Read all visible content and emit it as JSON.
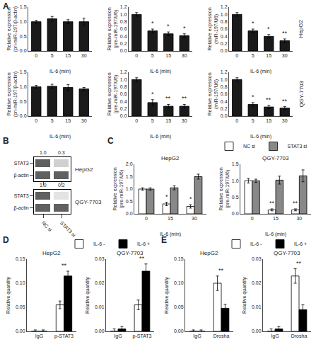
{
  "chart_data": [
    {
      "type": "bar",
      "annotations": [
        "A"
      ],
      "categories": [
        "0",
        "5",
        "15",
        "30"
      ],
      "xlabel": "IL-6 (min)",
      "ylabel": "Relative expression\n(pri-miR-197/β-actin)",
      "values": [
        1.0,
        1.1,
        1.0,
        1.0
      ],
      "errors": [
        0.05,
        0.08,
        0.07,
        0.12
      ],
      "color": "#1a1a1a",
      "ylim": [
        0,
        1.5
      ],
      "yticks": [
        {
          "value": 0.0,
          "label": "0.0"
        },
        {
          "value": 0.5,
          "label": "0.5"
        },
        {
          "value": 1.0,
          "label": "1.0"
        },
        {
          "value": 1.5,
          "label": "1.5"
        }
      ],
      "grid": false
    },
    {
      "type": "bar",
      "annotations": [
        {
          "text": "*",
          "x": "5"
        },
        {
          "text": "*",
          "x": "15"
        },
        {
          "text": "*",
          "x": "30"
        }
      ],
      "categories": [
        "0",
        "5",
        "15",
        "30"
      ],
      "xlabel": "IL-6 (min)",
      "ylabel": "Relative expression\n(pre-miR-197/U6)",
      "values": [
        1.0,
        0.55,
        0.47,
        0.42
      ],
      "errors": [
        0.05,
        0.05,
        0.05,
        0.05
      ],
      "color": "#1a1a1a",
      "ylim": [
        0,
        1.2
      ],
      "yticks": [
        {
          "value": 0.0,
          "label": "0.0"
        },
        {
          "value": 0.2,
          "label": "0.2"
        },
        {
          "value": 0.4,
          "label": "0.4"
        },
        {
          "value": 0.6,
          "label": "0.6"
        },
        {
          "value": 0.8,
          "label": "0.8"
        },
        {
          "value": 1.0,
          "label": "1.0"
        },
        {
          "value": 1.2,
          "label": "1.2"
        }
      ],
      "grid": false
    },
    {
      "type": "bar",
      "annotations": [
        "HepG2",
        {
          "text": "*",
          "x": "5"
        },
        {
          "text": "*",
          "x": "15"
        },
        {
          "text": "**",
          "x": "30"
        }
      ],
      "categories": [
        "0",
        "5",
        "15",
        "30"
      ],
      "xlabel": "IL-6 (min)",
      "ylabel": "Relative expression\n(miR-197/U6)",
      "values": [
        1.0,
        0.55,
        0.4,
        0.28
      ],
      "errors": [
        0.05,
        0.05,
        0.05,
        0.05
      ],
      "color": "#1a1a1a",
      "ylim": [
        0,
        1.2
      ],
      "yticks": [
        {
          "value": 0.0,
          "label": "0.0"
        },
        {
          "value": 0.2,
          "label": "0.2"
        },
        {
          "value": 0.4,
          "label": "0.4"
        },
        {
          "value": 0.6,
          "label": "0.6"
        },
        {
          "value": 0.8,
          "label": "0.8"
        },
        {
          "value": 1.0,
          "label": "1.0"
        },
        {
          "value": 1.2,
          "label": "1.2"
        }
      ],
      "grid": false
    },
    {
      "type": "bar",
      "categories": [
        "0",
        "5",
        "15",
        "30"
      ],
      "xlabel": "IL-6 (min)",
      "ylabel": "Relative expression\n(pri-miR-197/β-actin)",
      "values": [
        1.0,
        1.02,
        0.98,
        0.93
      ],
      "errors": [
        0.05,
        0.07,
        0.1,
        0.05
      ],
      "color": "#1a1a1a",
      "ylim": [
        0,
        1.5
      ],
      "yticks": [
        {
          "value": 0.0,
          "label": "0.0"
        },
        {
          "value": 0.5,
          "label": "0.5"
        },
        {
          "value": 1.0,
          "label": "1.0"
        },
        {
          "value": 1.5,
          "label": "1.5"
        }
      ],
      "grid": false
    },
    {
      "type": "bar",
      "annotations": [
        {
          "text": "*",
          "x": "5"
        },
        {
          "text": "**",
          "x": "15"
        },
        {
          "text": "**",
          "x": "30"
        }
      ],
      "categories": [
        "0",
        "5",
        "15",
        "30"
      ],
      "xlabel": "IL-6 (min)",
      "ylabel": "Relative expression\n(pre-miR-197/U6)",
      "values": [
        1.0,
        0.37,
        0.27,
        0.27
      ],
      "errors": [
        0.05,
        0.08,
        0.05,
        0.05
      ],
      "color": "#1a1a1a",
      "ylim": [
        0,
        1.2
      ],
      "yticks": [
        {
          "value": 0.0,
          "label": "0.0"
        },
        {
          "value": 0.2,
          "label": "0.2"
        },
        {
          "value": 0.4,
          "label": "0.4"
        },
        {
          "value": 0.6,
          "label": "0.6"
        },
        {
          "value": 0.8,
          "label": "0.8"
        },
        {
          "value": 1.0,
          "label": "1.0"
        },
        {
          "value": 1.2,
          "label": "1.2"
        }
      ],
      "grid": false
    },
    {
      "type": "bar",
      "annotations": [
        "QGY-7703",
        {
          "text": "*",
          "x": "5"
        },
        {
          "text": "**",
          "x": "15"
        },
        {
          "text": "**",
          "x": "30"
        }
      ],
      "categories": [
        "0",
        "5",
        "15",
        "30"
      ],
      "xlabel": "IL-6 (min)",
      "ylabel": "Relative expression\n(miR-197/U6)",
      "values": [
        1.0,
        0.32,
        0.25,
        0.22
      ],
      "errors": [
        0.05,
        0.05,
        0.05,
        0.04
      ],
      "color": "#1a1a1a",
      "ylim": [
        0,
        1.2
      ],
      "yticks": [
        {
          "value": 0.0,
          "label": "0.0"
        },
        {
          "value": 0.2,
          "label": "0.2"
        },
        {
          "value": 0.4,
          "label": "0.4"
        },
        {
          "value": 0.6,
          "label": "0.6"
        },
        {
          "value": 0.8,
          "label": "0.8"
        },
        {
          "value": 1.0,
          "label": "1.0"
        },
        {
          "value": 1.2,
          "label": "1.2"
        }
      ],
      "grid": false
    },
    {
      "type": "heatmap",
      "title": "HepG2",
      "annotations": [
        "B",
        {
          "text": "1.0",
          "x": "NC si",
          "y": "STAT3"
        },
        {
          "text": "0.3",
          "x": "STAT3 si",
          "y": "STAT3"
        }
      ],
      "categories": [
        "NC si",
        "STAT3 si"
      ],
      "rows": [
        "STAT3",
        "β-actin"
      ],
      "values": [
        [
          0.85,
          0.25
        ],
        [
          0.85,
          0.85
        ]
      ],
      "zlim": [
        0,
        1
      ],
      "color": "#444444",
      "tick_labels": "y"
    },
    {
      "type": "heatmap",
      "title": "QGY-7703",
      "annotations": [
        {
          "text": "1.0",
          "x": "NC si",
          "y": "STAT3"
        },
        {
          "text": "0.2",
          "x": "STAT3 si",
          "y": "STAT3"
        }
      ],
      "categories": [
        "NC si",
        "STAT3 si"
      ],
      "rows": [
        "STAT3",
        "β-actin"
      ],
      "values": [
        [
          0.85,
          0.15
        ],
        [
          0.85,
          0.85
        ]
      ],
      "zlim": [
        0,
        1
      ],
      "color": "#444444"
    },
    {
      "type": "bar",
      "title": "HepG2",
      "annotations": [
        "C",
        {
          "text": "*",
          "x": "15",
          "series": "NC si"
        },
        {
          "text": "*",
          "x": "30",
          "series": "NC si"
        }
      ],
      "categories": [
        "0",
        "15",
        "30"
      ],
      "xlabel": "IL-6 (min)",
      "ylabel": "Relative expression\n(pre-miR-197/U6)",
      "series": [
        {
          "name": "NC si",
          "color": "#ffffff",
          "values": [
            1.0,
            0.4,
            0.3
          ],
          "errors": [
            0.05,
            0.07,
            0.07
          ]
        },
        {
          "name": "STAT3 si",
          "color": "#888888",
          "values": [
            1.0,
            1.05,
            1.5
          ],
          "errors": [
            0.05,
            0.08,
            0.1
          ]
        }
      ],
      "ylim": [
        0,
        2.0
      ],
      "yticks": [
        {
          "value": 0.0,
          "label": "0.0"
        },
        {
          "value": 0.5,
          "label": "0.5"
        },
        {
          "value": 1.0,
          "label": "1.0"
        },
        {
          "value": 1.5,
          "label": "1.5"
        },
        {
          "value": 2.0,
          "label": "2.0"
        }
      ],
      "grid": false
    },
    {
      "type": "bar",
      "title": "QGY-7703",
      "legend": "upper right",
      "annotations": [
        {
          "text": "**",
          "x": "15",
          "series": "NC si"
        },
        {
          "text": "**",
          "x": "30",
          "series": "NC si"
        }
      ],
      "categories": [
        "0",
        "15",
        "30"
      ],
      "xlabel": "IL-6 (min)",
      "ylabel": "Relative expression\n(pre-miR-197/U6)",
      "series": [
        {
          "name": "NC si",
          "color": "#ffffff",
          "values": [
            1.0,
            0.12,
            0.12
          ],
          "errors": [
            0.07,
            0.03,
            0.03
          ]
        },
        {
          "name": "STAT3 si",
          "color": "#888888",
          "values": [
            1.0,
            1.02,
            1.15
          ],
          "errors": [
            0.05,
            0.12,
            0.18
          ]
        }
      ],
      "ylim": [
        0,
        1.5
      ],
      "yticks": [
        {
          "value": 0.0,
          "label": "0.0"
        },
        {
          "value": 0.5,
          "label": "0.5"
        },
        {
          "value": 1.0,
          "label": "1.0"
        },
        {
          "value": 1.5,
          "label": "1.5"
        }
      ],
      "grid": false
    },
    {
      "type": "bar",
      "title": "HepG2",
      "annotations": [
        "D",
        {
          "text": "**",
          "x": "p-STAT3"
        }
      ],
      "categories": [
        "IgG",
        "p-STAT3"
      ],
      "ylabel": "Relative quantity",
      "series": [
        {
          "name": "IL-6 -",
          "color": "#ffffff",
          "values": [
            0.0,
            0.055
          ],
          "errors": [
            0.003,
            0.008
          ]
        },
        {
          "name": "IL-6 +",
          "color": "#000000",
          "values": [
            0.0,
            0.115
          ],
          "errors": [
            0.003,
            0.01
          ]
        }
      ],
      "ylim": [
        0,
        0.15
      ],
      "yticks": [
        {
          "value": 0.0,
          "label": "0.00"
        },
        {
          "value": 0.05,
          "label": "0.05"
        },
        {
          "value": 0.1,
          "label": "0.10"
        },
        {
          "value": 0.15,
          "label": "0.15"
        }
      ],
      "grid": false
    },
    {
      "type": "bar",
      "title": "QGY-7703",
      "legend": "upper right",
      "annotations": [
        {
          "text": "**",
          "x": "p-STAT3"
        }
      ],
      "categories": [
        "IgG",
        "p-STAT3"
      ],
      "ylabel": "Relative quantity",
      "series": [
        {
          "name": "IL-6 -",
          "color": "#ffffff",
          "values": [
            0.0,
            0.011
          ],
          "errors": [
            0.001,
            0.002
          ]
        },
        {
          "name": "IL-6 +",
          "color": "#000000",
          "values": [
            0.001,
            0.025
          ],
          "errors": [
            0.001,
            0.003
          ]
        }
      ],
      "ylim": [
        0,
        0.03
      ],
      "yticks": [
        {
          "value": 0.0,
          "label": "0.00"
        },
        {
          "value": 0.01,
          "label": "0.01"
        },
        {
          "value": 0.02,
          "label": "0.02"
        },
        {
          "value": 0.03,
          "label": "0.03"
        }
      ],
      "grid": false
    },
    {
      "type": "bar",
      "title": "HepG2",
      "annotations": [
        "E",
        {
          "text": "**",
          "x": "Drosha"
        }
      ],
      "categories": [
        "IgG",
        "Drosha"
      ],
      "ylabel": "Relative quantity",
      "series": [
        {
          "name": "IL-6 -",
          "color": "#ffffff",
          "values": [
            0.0,
            0.1
          ],
          "errors": [
            0.003,
            0.015
          ]
        },
        {
          "name": "IL-6 +",
          "color": "#000000",
          "values": [
            0.0,
            0.048
          ],
          "errors": [
            0.003,
            0.008
          ]
        }
      ],
      "ylim": [
        0,
        0.15
      ],
      "yticks": [
        {
          "value": 0.0,
          "label": "0.00"
        },
        {
          "value": 0.05,
          "label": "0.05"
        },
        {
          "value": 0.1,
          "label": "0.10"
        },
        {
          "value": 0.15,
          "label": "0.15"
        }
      ],
      "grid": false
    },
    {
      "type": "bar",
      "title": "QGY-7703",
      "legend": "upper right",
      "annotations": [
        {
          "text": "**",
          "x": "Drosha"
        }
      ],
      "categories": [
        "IgG",
        "Drosha"
      ],
      "ylabel": "Relative quantity",
      "series": [
        {
          "name": "IL-6 -",
          "color": "#ffffff",
          "values": [
            0.0,
            0.023
          ],
          "errors": [
            0.001,
            0.003
          ]
        },
        {
          "name": "IL-6 +",
          "color": "#000000",
          "values": [
            0.001,
            0.009
          ],
          "errors": [
            0.001,
            0.002
          ]
        }
      ],
      "ylim": [
        0,
        0.03
      ],
      "yticks": [
        {
          "value": 0.0,
          "label": "0.00"
        },
        {
          "value": 0.01,
          "label": "0.01"
        },
        {
          "value": 0.02,
          "label": "0.02"
        },
        {
          "value": 0.03,
          "label": "0.03"
        }
      ],
      "grid": false
    }
  ]
}
